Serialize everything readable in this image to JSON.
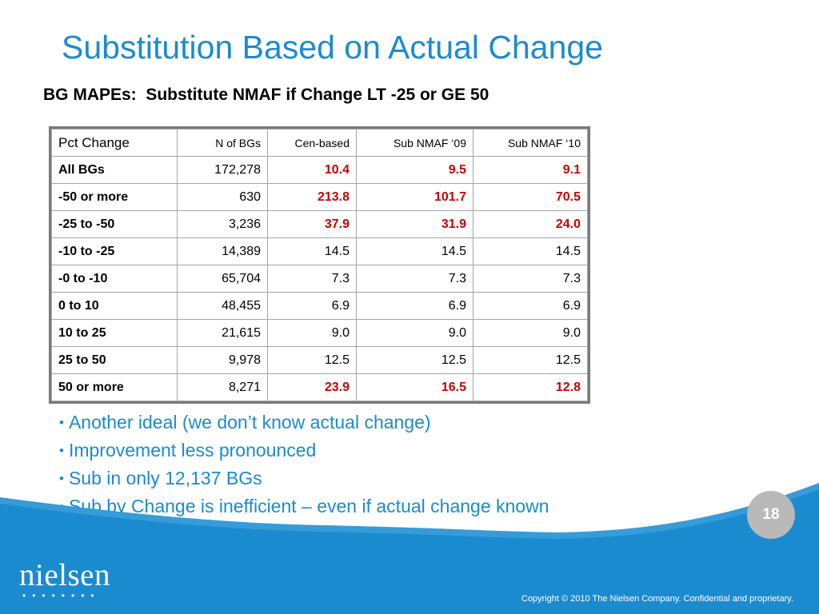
{
  "slide": {
    "title": "Substitution Based on Actual Change",
    "subtitle": "BG MAPEs:  Substitute NMAF if Change LT -25 or GE 50",
    "page_number": "18",
    "logo_text": "nielsen",
    "copyright": "Copyright © 2010 The Nielsen Company. Confidential and proprietary."
  },
  "table": {
    "headers": [
      "Pct Change",
      "N of BGs",
      "Cen-based",
      "Sub NMAF ‘09",
      "Sub NMAF ‘10"
    ],
    "rows": [
      {
        "label": "All BGs",
        "n": "172,278",
        "cen": "10.4",
        "nmaf09": "9.5",
        "nmaf10": "9.1",
        "highlight": true
      },
      {
        "label": "-50 or more",
        "n": "630",
        "cen": "213.8",
        "nmaf09": "101.7",
        "nmaf10": "70.5",
        "highlight": true
      },
      {
        "label": "-25 to -50",
        "n": "3,236",
        "cen": "37.9",
        "nmaf09": "31.9",
        "nmaf10": "24.0",
        "highlight": true
      },
      {
        "label": "-10 to -25",
        "n": "14,389",
        "cen": "14.5",
        "nmaf09": "14.5",
        "nmaf10": "14.5",
        "highlight": false
      },
      {
        "label": "-0 to -10",
        "n": "65,704",
        "cen": "7.3",
        "nmaf09": "7.3",
        "nmaf10": "7.3",
        "highlight": false
      },
      {
        "label": "0 to 10",
        "n": "48,455",
        "cen": "6.9",
        "nmaf09": "6.9",
        "nmaf10": "6.9",
        "highlight": false
      },
      {
        "label": "10 to 25",
        "n": "21,615",
        "cen": "9.0",
        "nmaf09": "9.0",
        "nmaf10": "9.0",
        "highlight": false
      },
      {
        "label": "25 to 50",
        "n": "9,978",
        "cen": "12.5",
        "nmaf09": "12.5",
        "nmaf10": "12.5",
        "highlight": false
      },
      {
        "label": "50 or more",
        "n": "8,271",
        "cen": "23.9",
        "nmaf09": "16.5",
        "nmaf10": "12.8",
        "highlight": true
      }
    ]
  },
  "bullets": [
    "Another ideal  (we don’t know actual change)",
    "Improvement less pronounced",
    "Sub in only 12,137 BGs",
    "Sub by Change is inefficient – even if actual change known"
  ],
  "colors": {
    "title": "#1b8bd0",
    "highlight_value": "#cc0000",
    "footer_blue": "#1b8bd0"
  }
}
